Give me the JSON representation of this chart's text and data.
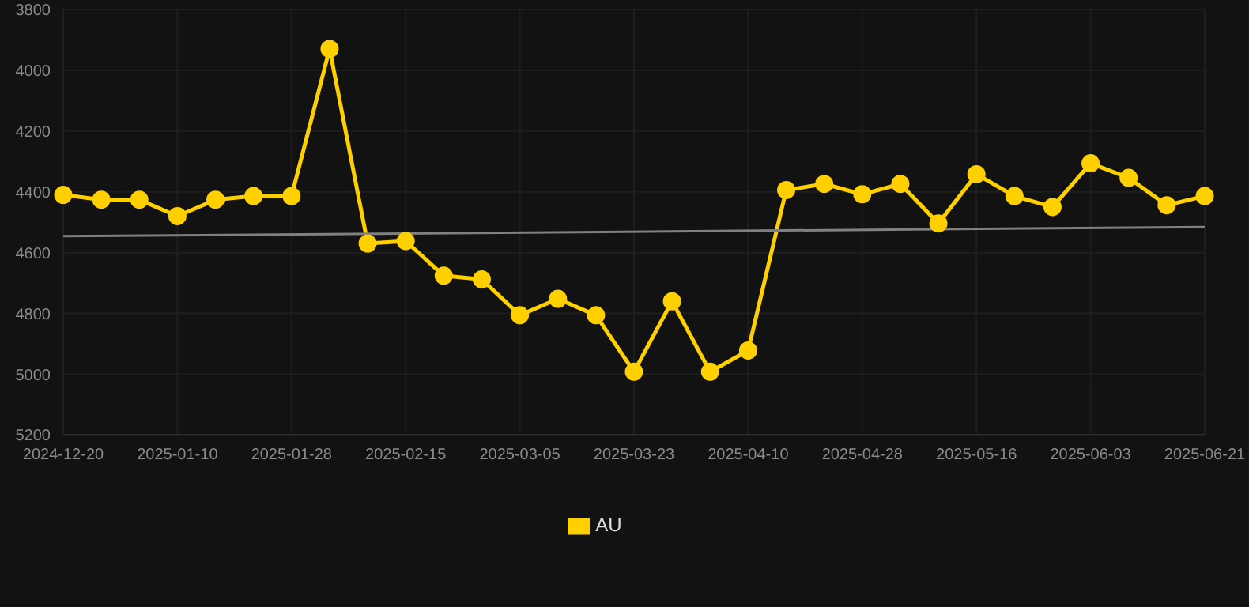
{
  "chart_data": {
    "type": "line",
    "categories": [
      "2024-12-20",
      null,
      null,
      "2025-01-10",
      null,
      null,
      "2025-01-28",
      null,
      null,
      "2025-02-15",
      null,
      null,
      "2025-03-05",
      null,
      null,
      "2025-03-23",
      null,
      null,
      "2025-04-10",
      null,
      null,
      "2025-04-28",
      null,
      null,
      "2025-05-16",
      null,
      null,
      "2025-06-03",
      null,
      null,
      "2025-06-21"
    ],
    "series": [
      {
        "name": "AU",
        "color": "#ffd000",
        "marker": "circle",
        "values": [
          4410,
          4426,
          4426,
          4480,
          4426,
          4414,
          4414,
          3930,
          4570,
          4562,
          4676,
          4688,
          4806,
          4752,
          4806,
          4992,
          4760,
          4992,
          4922,
          4394,
          4374,
          4408,
          4374,
          4504,
          4342,
          4414,
          4450,
          4306,
          4354,
          4444,
          4414
        ]
      },
      {
        "type": "line",
        "color": "#808080",
        "marker": "none",
        "values": [
          4546,
          null,
          null,
          null,
          null,
          null,
          null,
          null,
          null,
          null,
          null,
          null,
          null,
          null,
          null,
          null,
          null,
          null,
          null,
          null,
          null,
          null,
          null,
          null,
          null,
          null,
          null,
          null,
          null,
          null,
          4516
        ]
      }
    ],
    "ylim": [
      5200,
      3800
    ],
    "yticks": [
      3800,
      4000,
      4200,
      4400,
      4600,
      4800,
      5000,
      5200
    ],
    "grid": true,
    "legend": "bottom"
  }
}
